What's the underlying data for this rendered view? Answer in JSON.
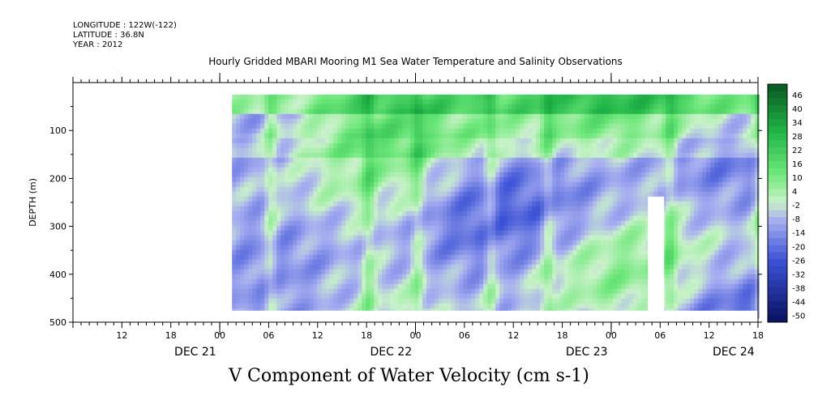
{
  "header": {
    "longitude": "LONGITUDE : 122W(-122)",
    "latitude": "LATITUDE : 36.8N",
    "year": "YEAR : 2012"
  },
  "chart_data": {
    "type": "heatmap",
    "title": "Hourly Gridded MBARI Mooring M1 Sea Water Temperature and Salinity Observations",
    "xlabel": "V Component of Water Velocity (cm s-1)",
    "ylabel": "DEPTH (m)",
    "y_ticks": [
      100,
      200,
      300,
      400,
      500
    ],
    "ylim": [
      500,
      0
    ],
    "x_hour_ticks": [
      "12",
      "18",
      "00",
      "06",
      "12",
      "18",
      "00",
      "06",
      "12",
      "18",
      "00",
      "06",
      "12",
      "18"
    ],
    "x_day_labels": [
      "DEC 21",
      "DEC 22",
      "DEC 23",
      "DEC 24"
    ],
    "colorbar_ticks": [
      46,
      40,
      34,
      28,
      22,
      16,
      10,
      4,
      -2,
      -8,
      -14,
      -20,
      -26,
      -32,
      -38,
      -44,
      -50
    ],
    "colors": {
      "strong_negative": "#0b1466",
      "negative": "#a7aef0",
      "positive": "#6ee87a",
      "strong_positive": "#0a5a22"
    }
  }
}
